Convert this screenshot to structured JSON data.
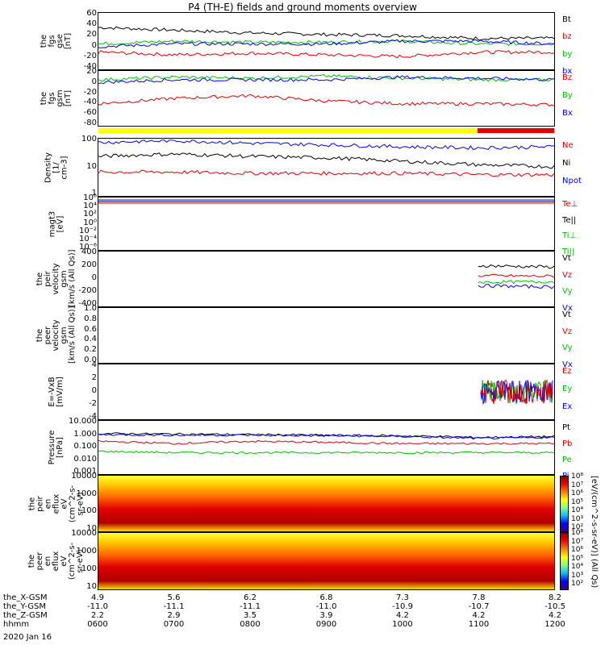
{
  "title": "P4 (TH-E) fields and ground moments overview",
  "panels": [
    {
      "key": "fgs_gse",
      "ylabel": "the\nfgs\ngse\n[nT]",
      "ticks": [
        "60",
        "40",
        "20",
        "0",
        "-20",
        "-40"
      ],
      "legend": [
        {
          "t": "Bt",
          "c": "#000000"
        },
        {
          "t": "bz",
          "c": "#e00000"
        },
        {
          "t": "by",
          "c": "#00c000"
        },
        {
          "t": "bx",
          "c": "#0000ff"
        }
      ]
    },
    {
      "key": "fgs_gsm",
      "ylabel": "the\nfgs\ngsm\n[nT]",
      "ticks": [
        "20",
        "0",
        "-20",
        "-40",
        "-60",
        "-80"
      ],
      "legend": [
        {
          "t": "Bz",
          "c": "#e00000"
        },
        {
          "t": "By",
          "c": "#00c000"
        },
        {
          "t": "Bx",
          "c": "#0000ff"
        }
      ]
    },
    {
      "key": "density",
      "ylabel": "Density\n[1/\ncm-3]",
      "ticks": [
        "100",
        "10",
        "1"
      ],
      "legend": [
        {
          "t": "Ne",
          "c": "#e00000"
        },
        {
          "t": "Ni",
          "c": "#000000"
        },
        {
          "t": "Npot",
          "c": "#0000ff"
        }
      ]
    },
    {
      "key": "temp",
      "ylabel": "magt3\n[eV]",
      "ticks": [
        "10⁶",
        "10⁴",
        "10²",
        "10⁰",
        "10⁻²",
        "10⁻⁴",
        "10⁻⁶"
      ],
      "legend": [
        {
          "t": "Te⊥",
          "c": "#e00000"
        },
        {
          "t": "Te||",
          "c": "#000000"
        },
        {
          "t": "Ti⊥",
          "c": "#00c000"
        },
        {
          "t": "Ti||",
          "c": "#00c000"
        }
      ]
    },
    {
      "key": "peir_vel",
      "ylabel": "the\npeir\nvelocity\ngsm\n[km/s (All Qs)]",
      "ticks": [
        "400",
        "200",
        "0",
        "-200",
        "-400"
      ],
      "legend": [
        {
          "t": "Vt",
          "c": "#000000"
        },
        {
          "t": "Vz",
          "c": "#e00000"
        },
        {
          "t": "Vy",
          "c": "#00c000"
        },
        {
          "t": "Vx",
          "c": "#0000ff"
        }
      ]
    },
    {
      "key": "peer_vel",
      "ylabel": "the\npeer\nvelocity\ngsm\n[km/s (All Qs)]",
      "ticks": [
        "1.0",
        "0.8",
        "0.6",
        "0.4",
        "0.2",
        "0.0"
      ],
      "legend": [
        {
          "t": "Vt",
          "c": "#000000"
        },
        {
          "t": "Vz",
          "c": "#e00000"
        },
        {
          "t": "Vy",
          "c": "#00c000"
        },
        {
          "t": "Vx",
          "c": "#0000ff"
        }
      ]
    },
    {
      "key": "efield",
      "ylabel": "E=-VxB\n[mV/m]",
      "ticks": [
        "4",
        "2",
        "0",
        "-2",
        "-4"
      ],
      "legend": [
        {
          "t": "Ez",
          "c": "#e00000"
        },
        {
          "t": "Ey",
          "c": "#00c000"
        },
        {
          "t": "Ex",
          "c": "#0000ff"
        }
      ]
    },
    {
      "key": "pressure",
      "ylabel": "Pressure\n[nPa]",
      "ticks": [
        "10.000",
        "1.000",
        "0.100",
        "0.010",
        "0.001"
      ],
      "legend": [
        {
          "t": "Pt",
          "c": "#000000"
        },
        {
          "t": "Pb",
          "c": "#e00000"
        },
        {
          "t": "Pe",
          "c": "#00c000"
        },
        {
          "t": "Pi",
          "c": "#0000ff"
        }
      ]
    },
    {
      "key": "peir_spec",
      "ylabel": "the\npeir\nen\neflux\neV\n(cm^2-s-\nsr-eV)",
      "ticks": [
        "10000",
        "1000",
        "100",
        "10"
      ],
      "legend": []
    },
    {
      "key": "peer_spec",
      "ylabel": "the\npeer\nen\neflux\neV\n(cm^2-s-\nsr-eV)",
      "ticks": [
        "10000",
        "1000",
        "100",
        "10"
      ],
      "legend": []
    }
  ],
  "colorbar": {
    "label": "[eV/(cm^2-s-sr-eV)] (All Qs)",
    "ticks": [
      "10⁸",
      "10⁷",
      "10⁶",
      "10⁵",
      "10⁴",
      "10³",
      "10²"
    ]
  },
  "xaxis": {
    "rows": [
      {
        "label": "the_X-GSM",
        "values": [
          "4.9",
          "5.6",
          "6.2",
          "6.8",
          "7.3",
          "7.8",
          "8.2"
        ]
      },
      {
        "label": "the_Y-GSM",
        "values": [
          "-11.0",
          "-11.1",
          "-11.1",
          "-11.0",
          "-10.9",
          "-10.7",
          "-10.5"
        ]
      },
      {
        "label": "the_Z-GSM",
        "values": [
          "2.2",
          "2.9",
          "3.5",
          "3.9",
          "4.2",
          "4.2",
          "4.2"
        ]
      },
      {
        "label": "hhmm",
        "values": [
          "0600",
          "0700",
          "0800",
          "0900",
          "1000",
          "1100",
          "1200"
        ]
      }
    ],
    "date": "2020 Jan 16"
  },
  "chart_data": {
    "type": "line",
    "title": "P4 (TH-E) fields and ground moments overview",
    "x_time_hhmm": [
      "0600",
      "0700",
      "0800",
      "0900",
      "1000",
      "1100",
      "1200"
    ],
    "series": [
      {
        "panel": "the fgs gse [nT]",
        "name": "Bt",
        "approx_values": [
          35,
          30,
          25,
          22,
          20,
          15,
          15
        ],
        "ylim": [
          -40,
          60
        ]
      },
      {
        "panel": "the fgs gse [nT]",
        "name": "bz",
        "approx_values": [
          -10,
          -15,
          -12,
          -15,
          -18,
          -10,
          -10
        ],
        "ylim": [
          -40,
          60
        ]
      },
      {
        "panel": "the fgs gse [nT]",
        "name": "by",
        "approx_values": [
          5,
          10,
          8,
          8,
          10,
          5,
          5
        ],
        "ylim": [
          -40,
          60
        ]
      },
      {
        "panel": "the fgs gse [nT]",
        "name": "bx",
        "approx_values": [
          0,
          5,
          5,
          5,
          10,
          10,
          5
        ],
        "ylim": [
          -40,
          60
        ]
      },
      {
        "panel": "the fgs gsm [nT]",
        "name": "Bz",
        "approx_values": [
          -40,
          -30,
          -25,
          -35,
          -40,
          -40,
          -42
        ],
        "ylim": [
          -80,
          20
        ]
      },
      {
        "panel": "the fgs gsm [nT]",
        "name": "By",
        "approx_values": [
          5,
          10,
          8,
          12,
          8,
          5,
          5
        ],
        "ylim": [
          -80,
          20
        ]
      },
      {
        "panel": "the fgs gsm [nT]",
        "name": "Bx",
        "approx_values": [
          0,
          5,
          5,
          5,
          10,
          8,
          5
        ],
        "ylim": [
          -80,
          20
        ]
      },
      {
        "panel": "Density [cm-3]",
        "name": "Ne",
        "approx_values": [
          9,
          9,
          8,
          8,
          8,
          7,
          7
        ],
        "ylim": [
          1,
          200
        ],
        "scale": "log"
      },
      {
        "panel": "Density [cm-3]",
        "name": "Ni",
        "approx_values": [
          40,
          50,
          40,
          35,
          25,
          18,
          15
        ],
        "ylim": [
          1,
          200
        ],
        "scale": "log"
      },
      {
        "panel": "Density [cm-3]",
        "name": "Npot",
        "approx_values": [
          150,
          180,
          140,
          120,
          100,
          90,
          100
        ],
        "ylim": [
          1,
          200
        ],
        "scale": "log"
      },
      {
        "panel": "the peir velocity gsm [km/s]",
        "name": "Vt",
        "approx_values": [
          null,
          null,
          null,
          null,
          null,
          200,
          180
        ],
        "ylim": [
          -400,
          400
        ]
      },
      {
        "panel": "the peir velocity gsm [km/s]",
        "name": "Vz",
        "approx_values": [
          null,
          null,
          null,
          null,
          null,
          50,
          40
        ],
        "ylim": [
          -400,
          400
        ]
      },
      {
        "panel": "the peir velocity gsm [km/s]",
        "name": "Vy",
        "approx_values": [
          null,
          null,
          null,
          null,
          null,
          -50,
          -40
        ],
        "ylim": [
          -400,
          400
        ]
      },
      {
        "panel": "the peir velocity gsm [km/s]",
        "name": "Vx",
        "approx_values": [
          null,
          null,
          null,
          null,
          null,
          -100,
          -120
        ],
        "ylim": [
          -400,
          400
        ]
      },
      {
        "panel": "Pressure [nPa]",
        "name": "Pt",
        "approx_values": [
          1.2,
          1.1,
          1.0,
          0.9,
          0.8,
          0.6,
          0.7
        ],
        "ylim": [
          0.001,
          10
        ],
        "scale": "log"
      },
      {
        "panel": "Pressure [nPa]",
        "name": "Pb",
        "approx_values": [
          0.3,
          0.2,
          0.3,
          0.25,
          0.2,
          0.2,
          0.2
        ],
        "ylim": [
          0.001,
          10
        ],
        "scale": "log"
      },
      {
        "panel": "Pressure [nPa]",
        "name": "Pe",
        "approx_values": [
          0.05,
          0.04,
          0.04,
          0.04,
          0.04,
          0.04,
          0.04
        ],
        "ylim": [
          0.001,
          10
        ],
        "scale": "log"
      },
      {
        "panel": "Pressure [nPa]",
        "name": "Pi",
        "approx_values": [
          1.0,
          0.9,
          0.9,
          0.8,
          0.7,
          0.5,
          0.6
        ],
        "ylim": [
          0.001,
          10
        ],
        "scale": "log"
      }
    ],
    "mode_bar": [
      {
        "from": "0600",
        "to": "1100",
        "color": "#ffff00"
      },
      {
        "from": "1100",
        "to": "1200",
        "color": "#e00000"
      }
    ]
  }
}
